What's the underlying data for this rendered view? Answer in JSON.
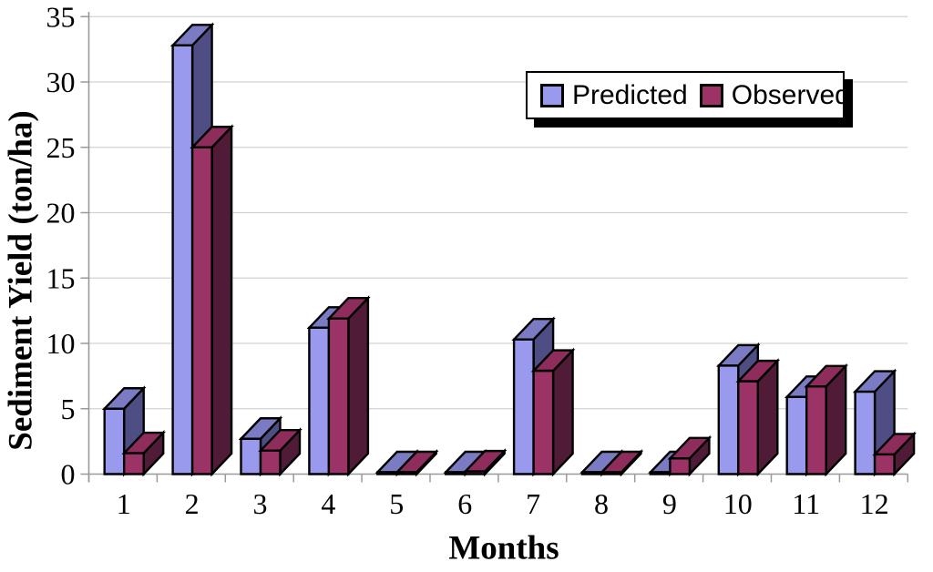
{
  "chart_data": {
    "type": "bar",
    "projection": "3d",
    "title": "",
    "xlabel": "Months",
    "ylabel": "Sediment Yield (ton/ha)",
    "categories": [
      "1",
      "2",
      "3",
      "4",
      "5",
      "6",
      "7",
      "8",
      "9",
      "10",
      "11",
      "12"
    ],
    "series": [
      {
        "name": "Predicted",
        "color": "#9999EE",
        "top_color": "#7B7BC4",
        "side_color": "#4E4E85",
        "values": [
          5.0,
          32.8,
          2.7,
          11.2,
          0,
          0,
          10.3,
          0,
          0,
          8.3,
          5.9,
          6.3
        ]
      },
      {
        "name": "Observed",
        "color": "#9C3366",
        "top_color": "#8E2D5B",
        "side_color": "#4F1B36",
        "values": [
          1.6,
          25.0,
          1.8,
          11.9,
          0,
          0.2,
          7.9,
          0,
          1.2,
          7.1,
          6.7,
          1.5
        ]
      }
    ],
    "ylim": [
      0,
      35
    ],
    "yticks": [
      0,
      5,
      10,
      15,
      20,
      25,
      30,
      35
    ],
    "grid": true,
    "legend_position": "top-right",
    "axis_color": "#9a9a9a",
    "grid_color": "#d2d2d2",
    "outline_color": "#000000"
  },
  "legend": {
    "items": [
      {
        "label": "Predicted",
        "color": "#9999EE"
      },
      {
        "label": "Observed",
        "color": "#9C3366"
      }
    ]
  }
}
